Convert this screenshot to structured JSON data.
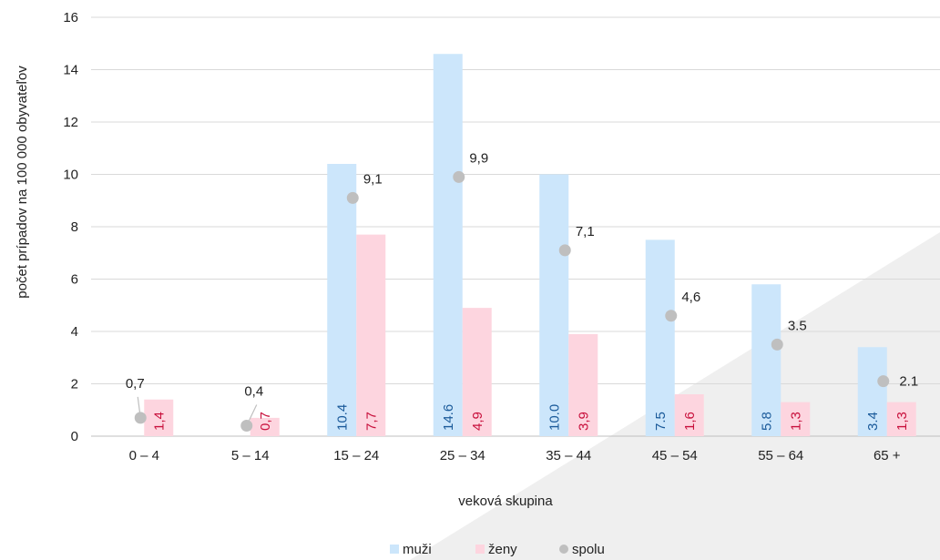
{
  "chart_data": {
    "type": "bar",
    "title": "",
    "xlabel": "veková skupina",
    "ylabel": "počet prípadov na 100 000 obyvateľov",
    "ylim": [
      0,
      16
    ],
    "yticks": [
      0,
      2,
      4,
      6,
      8,
      10,
      12,
      14,
      16
    ],
    "grid": "horizontal",
    "legend_position": "bottom-center",
    "categories": [
      "0 – 4",
      "5 – 14",
      "15 – 24",
      "25 – 34",
      "35 – 44",
      "45 – 54",
      "55 – 64",
      "65 +"
    ],
    "series": [
      {
        "name": "muži",
        "mark": "bar",
        "color": "#cce6fb",
        "label_color": "#1a5a9a",
        "values": [
          null,
          null,
          10.4,
          14.6,
          10.0,
          7.5,
          5.8,
          3.4
        ],
        "labels": [
          "",
          "",
          "10.4",
          "14.6",
          "10.0",
          "7.5",
          "5.8",
          "3.4"
        ]
      },
      {
        "name": "ženy",
        "mark": "bar",
        "color": "#fdd5df",
        "label_color": "#c8103c",
        "values": [
          1.4,
          0.7,
          7.7,
          4.9,
          3.9,
          1.6,
          1.3,
          1.3
        ],
        "labels": [
          "1,4",
          "0,7",
          "7,7",
          "4,9",
          "3,9",
          "1,6",
          "1,3",
          "1,3"
        ]
      },
      {
        "name": "spolu",
        "mark": "point",
        "color": "#bfbfbf",
        "values": [
          0.7,
          0.4,
          9.1,
          9.9,
          7.1,
          4.6,
          3.5,
          2.1
        ],
        "labels": [
          "0,7",
          "0,4",
          "9,1",
          "9,9",
          "7,1",
          "4,6",
          "3.5",
          "2.1"
        ]
      }
    ]
  }
}
